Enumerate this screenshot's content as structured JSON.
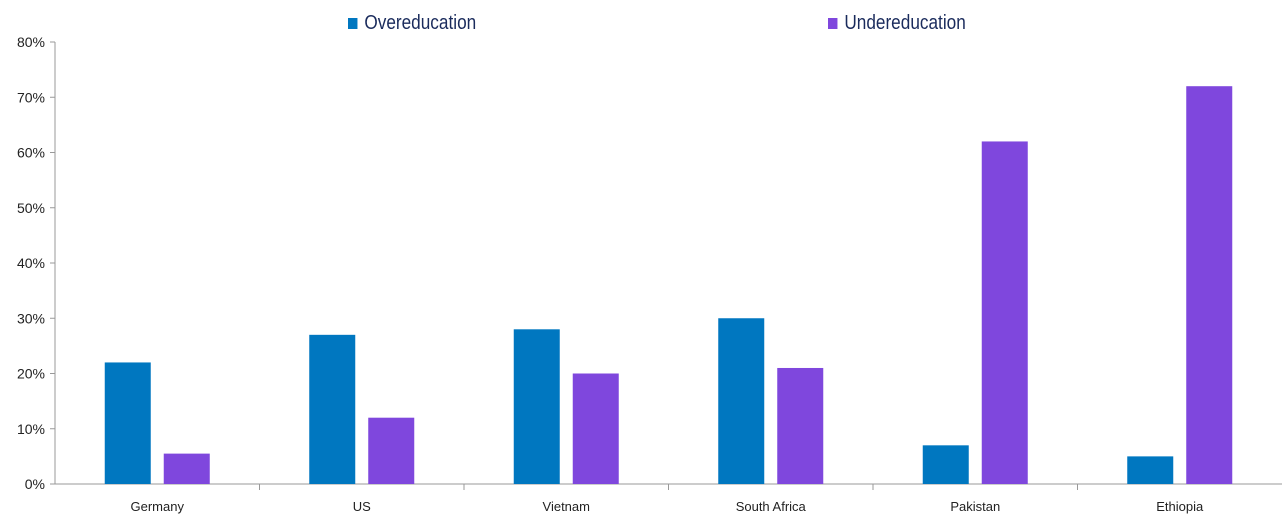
{
  "chart_data": {
    "type": "bar",
    "categories": [
      "Germany",
      "US",
      "Vietnam",
      "South Africa",
      "Pakistan",
      "Ethiopia"
    ],
    "series": [
      {
        "name": "Overeducation",
        "color": "#0077c0",
        "values": [
          22,
          27,
          28,
          30,
          7,
          5
        ]
      },
      {
        "name": "Undereducation",
        "color": "#7f47dd",
        "values": [
          5.5,
          12,
          20,
          21,
          62,
          72
        ]
      }
    ],
    "ylim": [
      0,
      80
    ],
    "yticks": [
      0,
      10,
      20,
      30,
      40,
      50,
      60,
      70,
      80
    ],
    "ytick_labels": [
      "0%",
      "10%",
      "20%",
      "30%",
      "40%",
      "50%",
      "60%",
      "70%",
      "80%"
    ],
    "legend_position": "top",
    "grid": false
  }
}
